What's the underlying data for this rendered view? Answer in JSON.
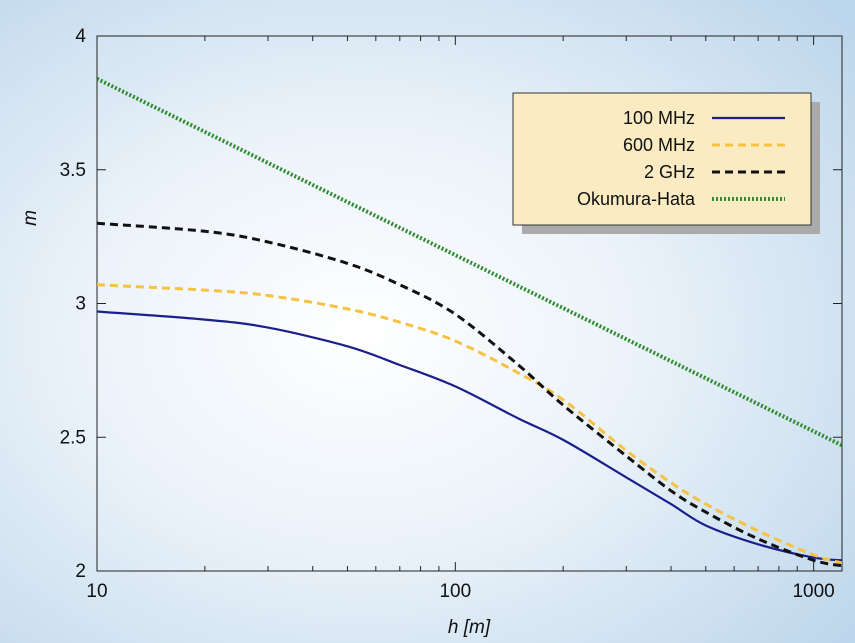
{
  "chart_data": {
    "type": "line",
    "title": "",
    "xlabel": "h [m]",
    "ylabel": "m",
    "xscale": "log",
    "xlim": [
      10,
      1200
    ],
    "ylim": [
      2,
      4
    ],
    "x_ticks": [
      "10",
      "100",
      "1000"
    ],
    "y_ticks": [
      "2",
      "2.5",
      "3",
      "3.5",
      "4"
    ],
    "grid": false,
    "legend_position": "top-right",
    "background": "radial gradient, white center to light blue",
    "series": [
      {
        "name": "100 MHz",
        "color": "#1a1f8c",
        "style": "solid",
        "x": [
          10,
          20,
          30,
          50,
          70,
          100,
          150,
          200,
          300,
          400,
          500,
          700,
          1000,
          1200
        ],
        "y": [
          2.97,
          2.94,
          2.91,
          2.84,
          2.77,
          2.69,
          2.57,
          2.49,
          2.35,
          2.25,
          2.17,
          2.1,
          2.05,
          2.04
        ]
      },
      {
        "name": "600 MHz",
        "color": "#f5c242",
        "style": "dashed",
        "x": [
          10,
          20,
          30,
          50,
          70,
          100,
          150,
          200,
          300,
          400,
          500,
          700,
          1000,
          1200
        ],
        "y": [
          3.07,
          3.05,
          3.03,
          2.98,
          2.93,
          2.86,
          2.74,
          2.64,
          2.45,
          2.33,
          2.25,
          2.15,
          2.06,
          2.03
        ]
      },
      {
        "name": "2 GHz",
        "color": "#111111",
        "style": "dashed",
        "x": [
          10,
          20,
          30,
          50,
          70,
          100,
          150,
          200,
          300,
          400,
          500,
          700,
          1000,
          1200
        ],
        "y": [
          3.3,
          3.27,
          3.23,
          3.15,
          3.07,
          2.96,
          2.77,
          2.62,
          2.43,
          2.3,
          2.22,
          2.12,
          2.04,
          2.02
        ]
      },
      {
        "name": "Okumura-Hata",
        "color": "#2e8b2e",
        "style": "dotted",
        "x": [
          10,
          1200
        ],
        "y": [
          3.84,
          2.47
        ]
      }
    ]
  }
}
